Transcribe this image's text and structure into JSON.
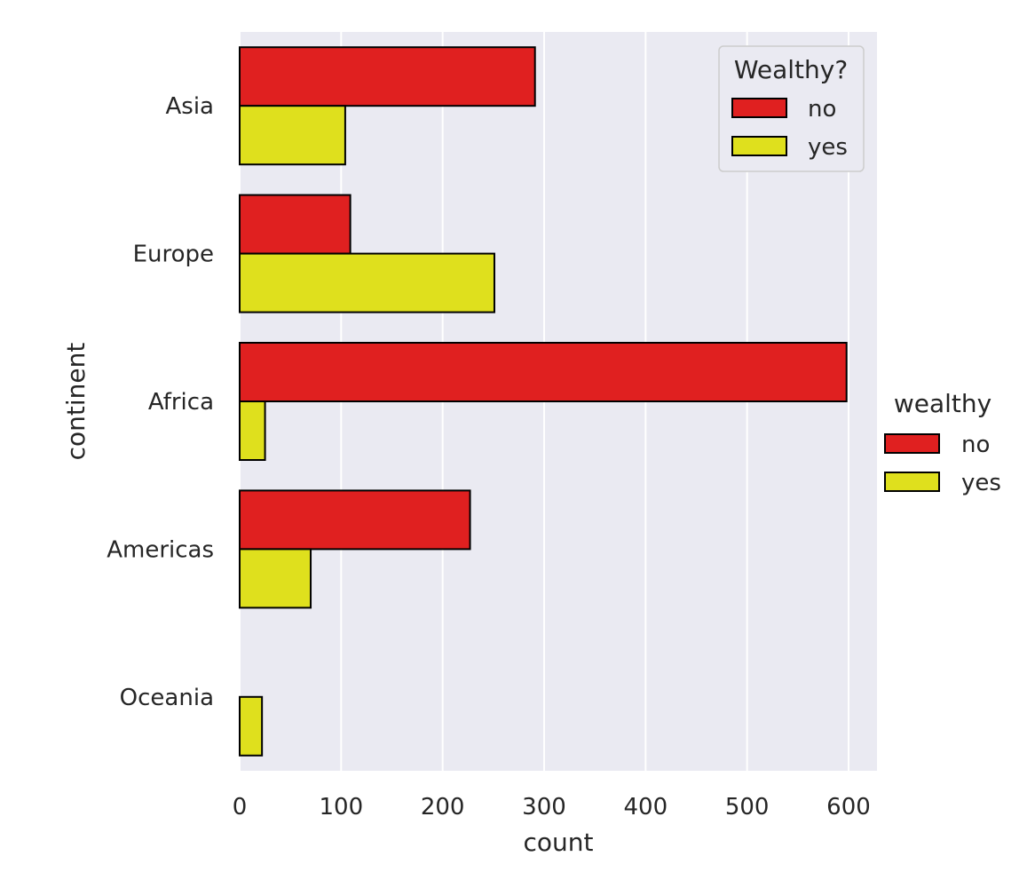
{
  "chart_data": {
    "type": "bar",
    "orientation": "horizontal",
    "categories": [
      "Asia",
      "Europe",
      "Africa",
      "Americas",
      "Oceania"
    ],
    "series": [
      {
        "name": "no",
        "color": "#e02020",
        "values": [
          291,
          109,
          598,
          227,
          0
        ]
      },
      {
        "name": "yes",
        "color": "#dfe01d",
        "values": [
          104,
          251,
          25,
          70,
          22
        ]
      }
    ],
    "xlabel": "count",
    "ylabel": "continent",
    "xlim": [
      0,
      628
    ],
    "xticks": [
      0,
      100,
      200,
      300,
      400,
      500,
      600
    ],
    "grid": true,
    "background": "#eaeaf2",
    "edgecolor": "#000000",
    "legend_inner": {
      "title": "Wealthy?",
      "entries": [
        "no",
        "yes"
      ],
      "placement": "top-right"
    },
    "legend_outer": {
      "title": "wealthy",
      "entries": [
        "no",
        "yes"
      ],
      "placement": "right"
    }
  }
}
